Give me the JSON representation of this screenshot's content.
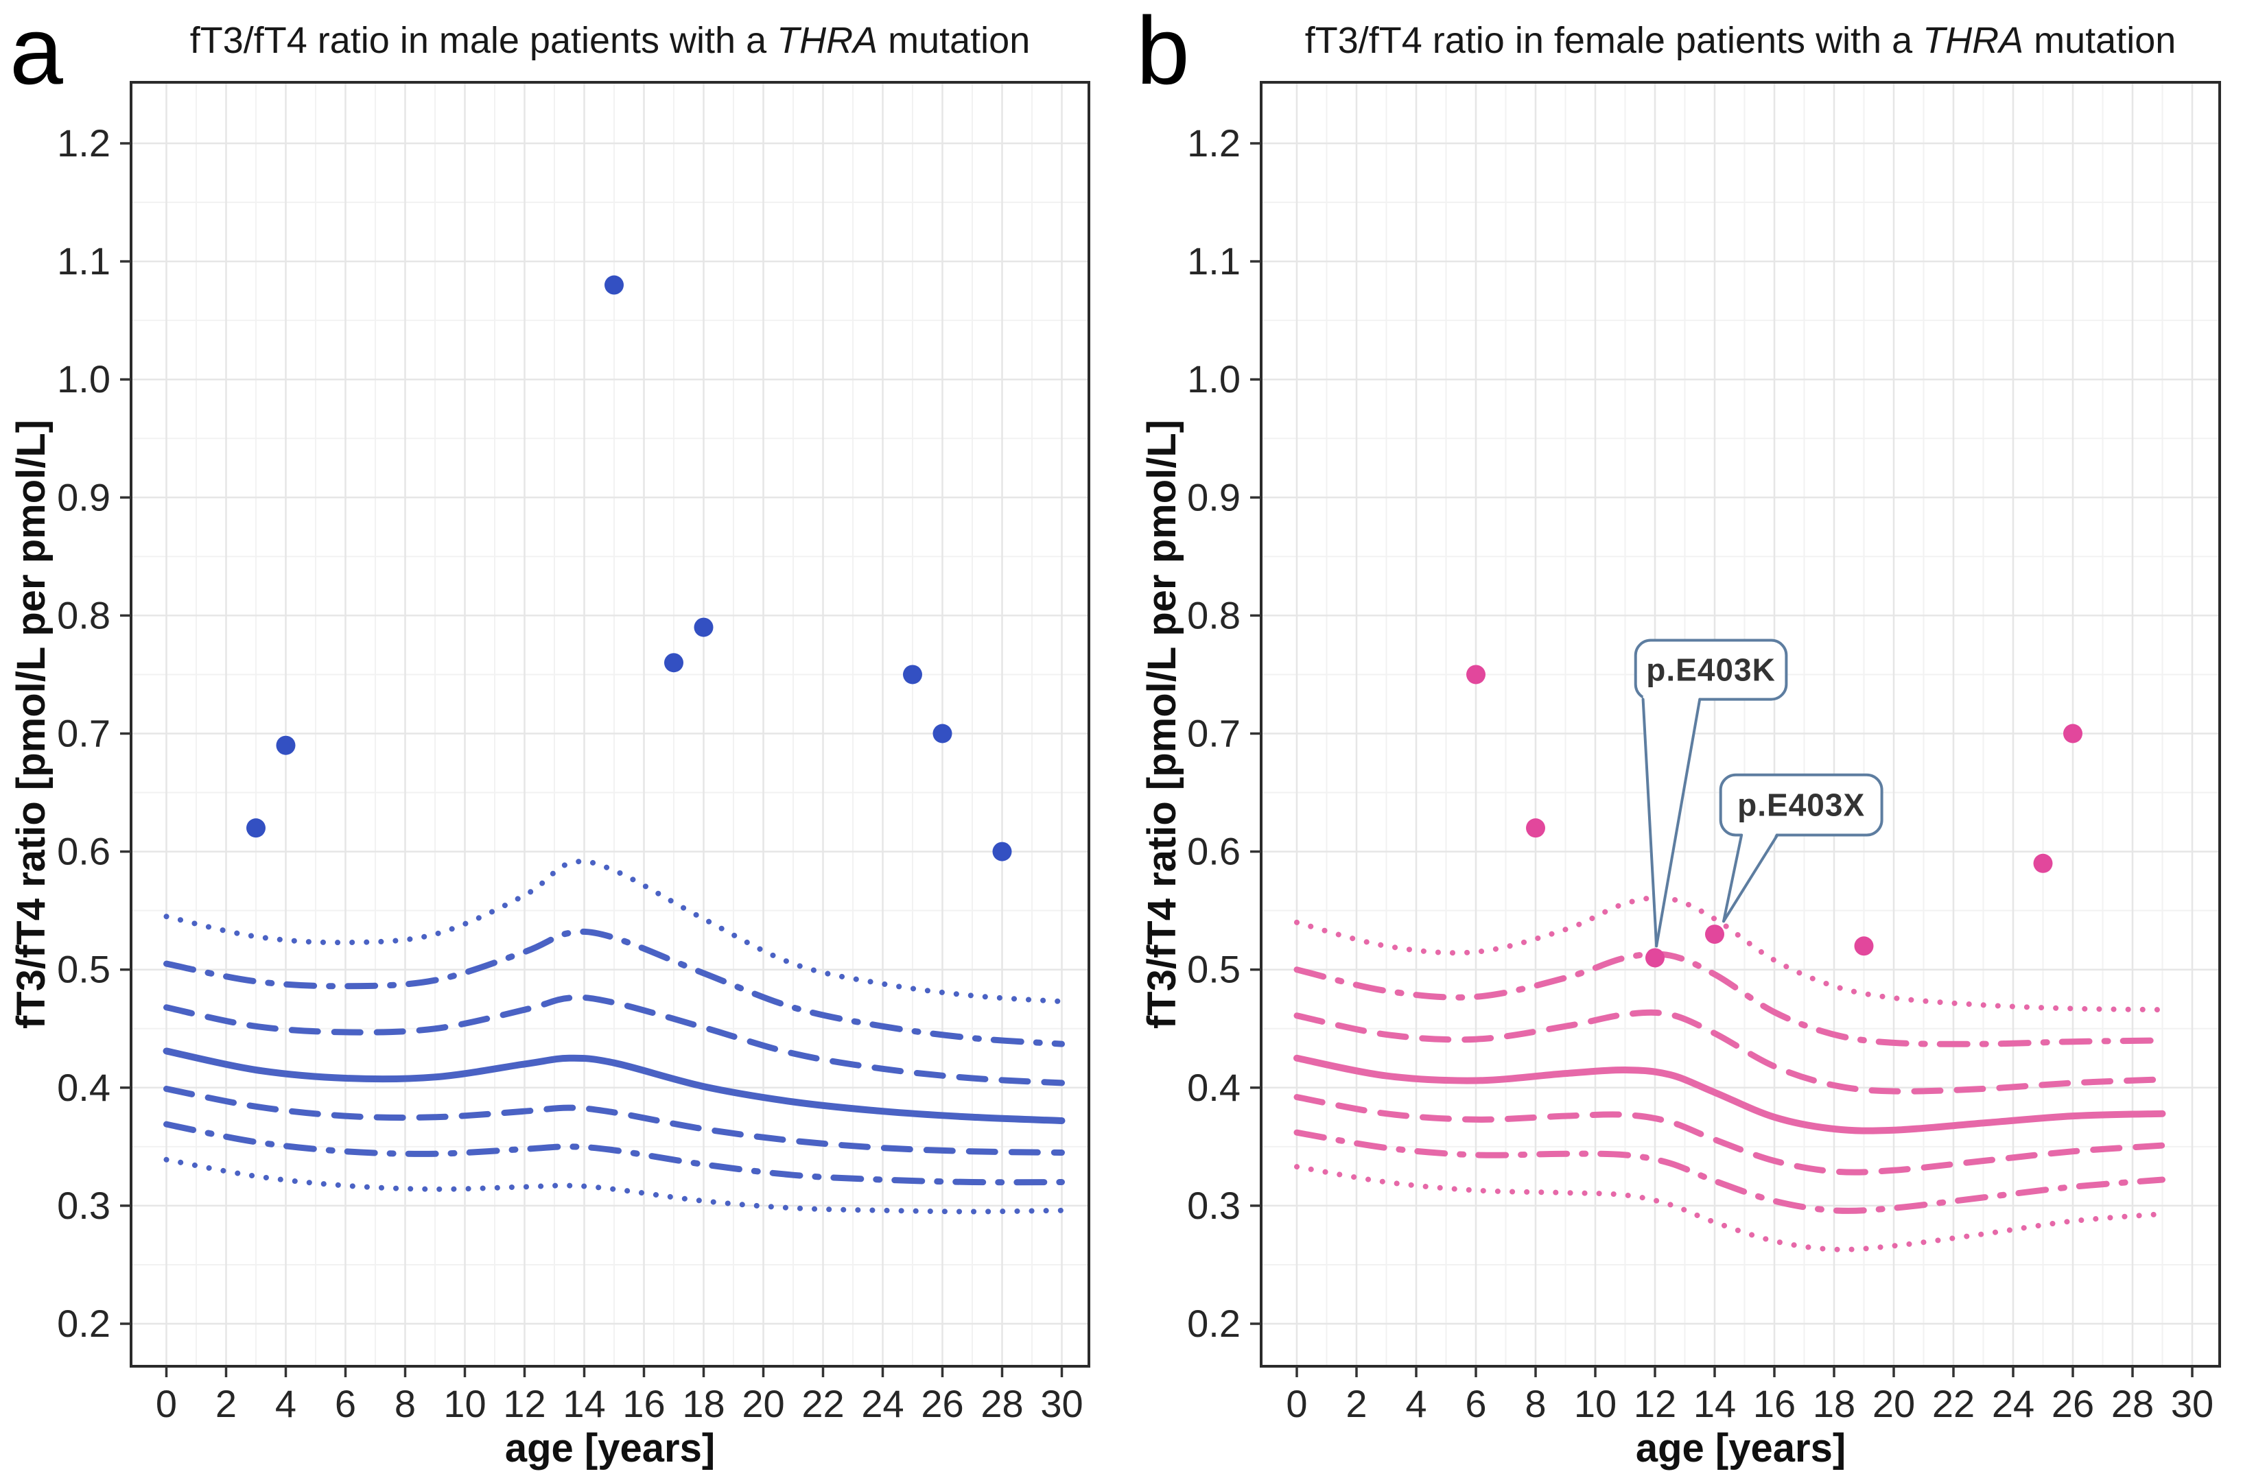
{
  "chart_data": [
    {
      "type": "scatter",
      "panel_letter": "a",
      "title_prefix": "fT3/fT4 ratio in male patients with a ",
      "title_gene": "THRA",
      "title_suffix": " mutation",
      "xlabel": "age [years]",
      "ylabel": "fT3/fT4 ratio [pmol/L per pmol/L]",
      "xlim": [
        0,
        30
      ],
      "ylim": [
        0.2,
        1.2
      ],
      "grid": "major+minor, light gray on white, full panel border",
      "legend": "none",
      "point_color": "#3350c2",
      "curve_color": "#4a62c4",
      "x_ticks": [
        {
          "v": 0,
          "label": "0"
        },
        {
          "v": 2,
          "label": "2"
        },
        {
          "v": 4,
          "label": "4"
        },
        {
          "v": 6,
          "label": "6"
        },
        {
          "v": 8,
          "label": "8"
        },
        {
          "v": 10,
          "label": "10"
        },
        {
          "v": 12,
          "label": "12"
        },
        {
          "v": 14,
          "label": "14"
        },
        {
          "v": 16,
          "label": "16"
        },
        {
          "v": 18,
          "label": "18"
        },
        {
          "v": 20,
          "label": "20"
        },
        {
          "v": 22,
          "label": "22"
        },
        {
          "v": 24,
          "label": "24"
        },
        {
          "v": 26,
          "label": "26"
        },
        {
          "v": 28,
          "label": "28"
        },
        {
          "v": 30,
          "label": "30"
        }
      ],
      "y_ticks": [
        {
          "v": 1.2,
          "label": "1.2"
        },
        {
          "v": 1.1,
          "label": "1.1"
        },
        {
          "v": 1.0,
          "label": "1.0"
        },
        {
          "v": 0.9,
          "label": "0.9"
        },
        {
          "v": 0.8,
          "label": "0.8"
        },
        {
          "v": 0.7,
          "label": "0.7"
        },
        {
          "v": 0.6,
          "label": "0.6"
        },
        {
          "v": 0.5,
          "label": "0.5"
        },
        {
          "v": 0.4,
          "label": "0.4"
        },
        {
          "v": 0.3,
          "label": "0.3"
        },
        {
          "v": 0.2,
          "label": "0.2"
        }
      ],
      "points": [
        [
          3,
          0.62
        ],
        [
          4,
          0.69
        ],
        [
          15,
          1.08
        ],
        [
          17,
          0.76
        ],
        [
          18,
          0.79
        ],
        [
          25,
          0.75
        ],
        [
          26,
          0.7
        ],
        [
          28,
          0.6
        ]
      ],
      "curves": [
        {
          "style": "dotted",
          "name": "upper-dotted-reference",
          "x": [
            0,
            3,
            6,
            9,
            12,
            13.5,
            15,
            18,
            21,
            24,
            27,
            30
          ],
          "y": [
            0.545,
            0.528,
            0.523,
            0.53,
            0.563,
            0.59,
            0.584,
            0.543,
            0.505,
            0.488,
            0.478,
            0.473
          ]
        },
        {
          "style": "dashdot",
          "name": "upper-dashdot-reference",
          "x": [
            0,
            3,
            6,
            9,
            12,
            13.5,
            15,
            18,
            21,
            24,
            27,
            30
          ],
          "y": [
            0.505,
            0.49,
            0.486,
            0.491,
            0.515,
            0.531,
            0.527,
            0.497,
            0.468,
            0.452,
            0.442,
            0.437
          ]
        },
        {
          "style": "dashed",
          "name": "upper-dashed-reference",
          "x": [
            0,
            3,
            6,
            9,
            12,
            13.5,
            15,
            18,
            21,
            24,
            27,
            30
          ],
          "y": [
            0.468,
            0.452,
            0.447,
            0.45,
            0.466,
            0.476,
            0.472,
            0.451,
            0.429,
            0.416,
            0.408,
            0.404
          ]
        },
        {
          "style": "solid",
          "name": "median-reference",
          "x": [
            0,
            3,
            6,
            9,
            12,
            13.5,
            15,
            18,
            21,
            24,
            27,
            30
          ],
          "y": [
            0.431,
            0.415,
            0.408,
            0.409,
            0.42,
            0.425,
            0.421,
            0.401,
            0.388,
            0.38,
            0.375,
            0.372
          ]
        },
        {
          "style": "dashed",
          "name": "lower-dashed-reference",
          "x": [
            0,
            3,
            6,
            9,
            12,
            13.5,
            15,
            18,
            21,
            24,
            27,
            30
          ],
          "y": [
            0.399,
            0.384,
            0.376,
            0.375,
            0.38,
            0.383,
            0.379,
            0.365,
            0.355,
            0.349,
            0.346,
            0.345
          ]
        },
        {
          "style": "dashdot",
          "name": "lower-dashdot-reference",
          "x": [
            0,
            3,
            6,
            9,
            12,
            13.5,
            15,
            18,
            21,
            24,
            27,
            30
          ],
          "y": [
            0.369,
            0.354,
            0.346,
            0.344,
            0.348,
            0.35,
            0.347,
            0.335,
            0.326,
            0.322,
            0.32,
            0.32
          ]
        },
        {
          "style": "dotted",
          "name": "lower-dotted-reference",
          "x": [
            0,
            3,
            6,
            9,
            12,
            13.5,
            15,
            18,
            21,
            24,
            27,
            30
          ],
          "y": [
            0.339,
            0.325,
            0.317,
            0.314,
            0.316,
            0.317,
            0.314,
            0.304,
            0.298,
            0.296,
            0.295,
            0.296
          ]
        }
      ],
      "callouts": []
    },
    {
      "type": "scatter",
      "panel_letter": "b",
      "title_prefix": "fT3/fT4 ratio in female patients with a ",
      "title_gene": "THRA",
      "title_suffix": " mutation",
      "xlabel": "age [years]",
      "ylabel": "fT3/fT4 ratio [pmol/L per pmol/L]",
      "xlim": [
        0,
        30
      ],
      "ylim": [
        0.2,
        1.2
      ],
      "grid": "major+minor, light gray on white, full panel border",
      "legend": "none",
      "point_color": "#e2479c",
      "curve_color": "#e668a8",
      "x_ticks": [
        {
          "v": 0,
          "label": "0"
        },
        {
          "v": 2,
          "label": "2"
        },
        {
          "v": 4,
          "label": "4"
        },
        {
          "v": 6,
          "label": "6"
        },
        {
          "v": 8,
          "label": "8"
        },
        {
          "v": 10,
          "label": "10"
        },
        {
          "v": 12,
          "label": "12"
        },
        {
          "v": 14,
          "label": "14"
        },
        {
          "v": 16,
          "label": "16"
        },
        {
          "v": 18,
          "label": "18"
        },
        {
          "v": 20,
          "label": "20"
        },
        {
          "v": 22,
          "label": "22"
        },
        {
          "v": 24,
          "label": "24"
        },
        {
          "v": 26,
          "label": "26"
        },
        {
          "v": 28,
          "label": "28"
        },
        {
          "v": 30,
          "label": "30"
        }
      ],
      "y_ticks": [
        {
          "v": 1.2,
          "label": "1.2"
        },
        {
          "v": 1.1,
          "label": "1.1"
        },
        {
          "v": 1.0,
          "label": "1.0"
        },
        {
          "v": 0.9,
          "label": "0.9"
        },
        {
          "v": 0.8,
          "label": "0.8"
        },
        {
          "v": 0.7,
          "label": "0.7"
        },
        {
          "v": 0.6,
          "label": "0.6"
        },
        {
          "v": 0.5,
          "label": "0.5"
        },
        {
          "v": 0.4,
          "label": "0.4"
        },
        {
          "v": 0.3,
          "label": "0.3"
        },
        {
          "v": 0.2,
          "label": "0.2"
        }
      ],
      "points": [
        [
          6,
          0.75
        ],
        [
          8,
          0.62
        ],
        [
          12,
          0.51
        ],
        [
          14,
          0.53
        ],
        [
          19,
          0.52
        ],
        [
          25,
          0.59
        ],
        [
          26,
          0.7
        ]
      ],
      "curves": [
        {
          "style": "dotted",
          "name": "upper-dotted-reference",
          "x": [
            0,
            3,
            6,
            9,
            11,
            12.5,
            14,
            16,
            18,
            20,
            23,
            26,
            29
          ],
          "y": [
            0.54,
            0.52,
            0.515,
            0.534,
            0.556,
            0.56,
            0.543,
            0.508,
            0.486,
            0.476,
            0.47,
            0.467,
            0.466
          ]
        },
        {
          "style": "dashdot",
          "name": "upper-dashdot-reference",
          "x": [
            0,
            3,
            6,
            9,
            11,
            12.5,
            14,
            16,
            18,
            20,
            23,
            26,
            29
          ],
          "y": [
            0.5,
            0.482,
            0.477,
            0.493,
            0.51,
            0.512,
            0.496,
            0.464,
            0.445,
            0.438,
            0.437,
            0.439,
            0.44
          ]
        },
        {
          "style": "dashed",
          "name": "upper-dashed-reference",
          "x": [
            0,
            3,
            6,
            9,
            11,
            12.5,
            14,
            16,
            18,
            20,
            23,
            26,
            29
          ],
          "y": [
            0.461,
            0.445,
            0.441,
            0.452,
            0.462,
            0.462,
            0.446,
            0.418,
            0.402,
            0.397,
            0.399,
            0.404,
            0.407
          ]
        },
        {
          "style": "solid",
          "name": "median-reference",
          "x": [
            0,
            3,
            6,
            9,
            11,
            12.5,
            14,
            16,
            18,
            20,
            23,
            26,
            29
          ],
          "y": [
            0.425,
            0.41,
            0.406,
            0.412,
            0.415,
            0.411,
            0.396,
            0.375,
            0.365,
            0.364,
            0.37,
            0.376,
            0.378
          ]
        },
        {
          "style": "dashed",
          "name": "lower-dashed-reference",
          "x": [
            0,
            3,
            6,
            9,
            11,
            12.5,
            14,
            16,
            18,
            20,
            23,
            26,
            29
          ],
          "y": [
            0.392,
            0.378,
            0.373,
            0.376,
            0.377,
            0.371,
            0.356,
            0.338,
            0.329,
            0.33,
            0.338,
            0.346,
            0.351
          ]
        },
        {
          "style": "dashdot",
          "name": "lower-dashdot-reference",
          "x": [
            0,
            3,
            6,
            9,
            11,
            12.5,
            14,
            16,
            18,
            20,
            23,
            26,
            29
          ],
          "y": [
            0.362,
            0.349,
            0.343,
            0.344,
            0.343,
            0.336,
            0.321,
            0.304,
            0.296,
            0.298,
            0.307,
            0.316,
            0.322
          ]
        },
        {
          "style": "dotted",
          "name": "lower-dotted-reference",
          "x": [
            0,
            3,
            6,
            9,
            11,
            12.5,
            14,
            16,
            18,
            20,
            23,
            26,
            29
          ],
          "y": [
            0.333,
            0.32,
            0.313,
            0.311,
            0.309,
            0.301,
            0.286,
            0.27,
            0.263,
            0.266,
            0.276,
            0.287,
            0.293
          ]
        }
      ],
      "callouts": [
        {
          "label": "p.E403K",
          "target_point": [
            12,
            0.51
          ],
          "box": {
            "x0": 11.35,
            "x1": 16.4,
            "y_top": 0.779,
            "y_bot": 0.729
          },
          "tail": {
            "tip": [
              12.05,
              0.52
            ],
            "base_x": [
              11.6,
              13.5
            ]
          },
          "border_color": "#5d7da0",
          "text_color": "#333333"
        },
        {
          "label": "p.E403X",
          "target_point": [
            14,
            0.53
          ],
          "box": {
            "x0": 14.2,
            "x1": 19.6,
            "y_top": 0.665,
            "y_bot": 0.614
          },
          "tail": {
            "tip": [
              14.3,
              0.541
            ],
            "base_x": [
              14.9,
              16.1
            ]
          },
          "border_color": "#5d7da0",
          "text_color": "#333333"
        }
      ]
    }
  ],
  "style_colors": {
    "panel_border": "#2b2b2b",
    "grid_major": "#e6e6e6",
    "grid_minor": "#f2f2f2",
    "tick_mark": "#333333",
    "tick_label": "#262626",
    "callout_fill": "#ffffff"
  }
}
